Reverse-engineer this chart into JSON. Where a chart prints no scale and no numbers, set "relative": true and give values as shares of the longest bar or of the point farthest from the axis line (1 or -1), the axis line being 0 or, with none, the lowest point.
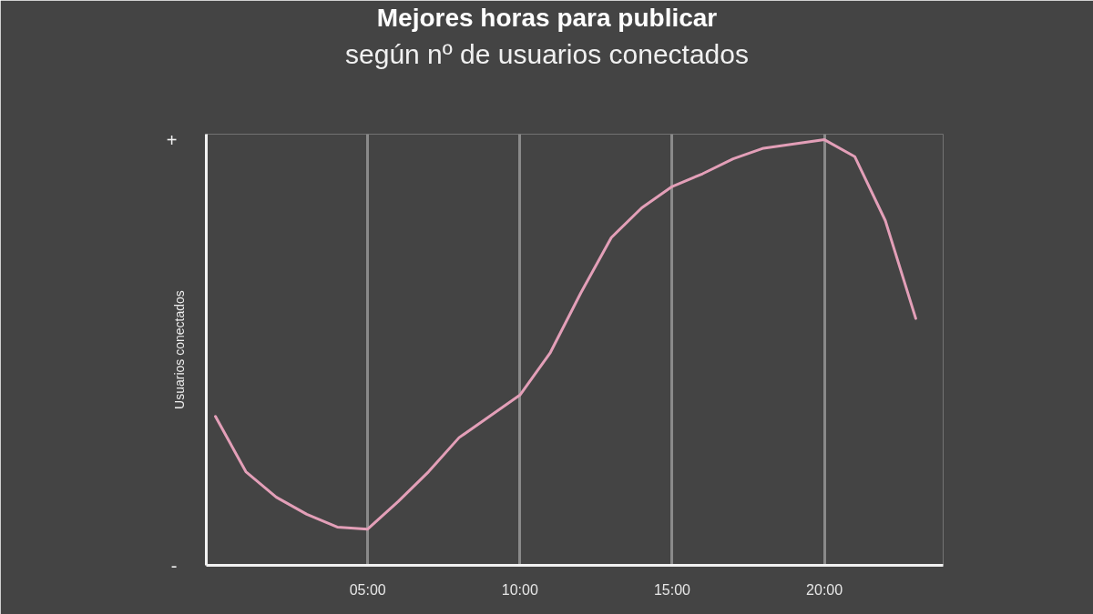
{
  "chart_data": {
    "type": "line",
    "title": "Mejores horas para publicar",
    "subtitle": "según nº de usuarios conectados",
    "ylabel": "Usuarios conectados",
    "x": [
      0,
      1,
      2,
      3,
      4,
      5,
      6,
      7,
      8,
      9,
      10,
      11,
      12,
      13,
      14,
      15,
      16,
      17,
      18,
      19,
      20,
      21,
      22,
      23
    ],
    "xlim": [
      -0.3,
      23.9
    ],
    "xticks": [
      {
        "value": 5,
        "label": "05:00"
      },
      {
        "value": 10,
        "label": "10:00"
      },
      {
        "value": 15,
        "label": "15:00"
      },
      {
        "value": 20,
        "label": "20:00"
      }
    ],
    "relative": true,
    "series": [
      {
        "color": "#e39fb8",
        "values": [
          0.35,
          0.22,
          0.16,
          0.12,
          0.09,
          0.085,
          0.15,
          0.22,
          0.3,
          0.35,
          0.4,
          0.5,
          0.64,
          0.77,
          0.84,
          0.89,
          0.92,
          0.955,
          0.98,
          0.99,
          1.0,
          0.96,
          0.81,
          0.58
        ]
      }
    ],
    "annotations": [
      "+",
      "-"
    ],
    "grid": "x"
  }
}
